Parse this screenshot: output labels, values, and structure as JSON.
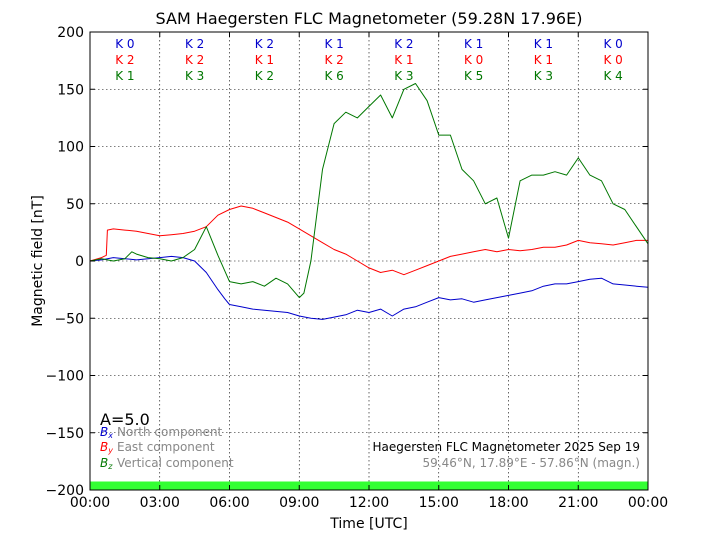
{
  "chart_data": {
    "type": "line",
    "title": "SAM Haegersten FLC Magnetometer (59.28N 17.96E)",
    "xlabel": "Time [UTC]",
    "ylabel": "Magnetic field [nT]",
    "xlim_hours": [
      0,
      24
    ],
    "ylim": [
      -200,
      200
    ],
    "x_tick_labels": [
      "00:00",
      "03:00",
      "06:00",
      "09:00",
      "12:00",
      "15:00",
      "18:00",
      "21:00",
      "00:00"
    ],
    "y_ticks": [
      -200,
      -150,
      -100,
      -50,
      0,
      50,
      100,
      150,
      200
    ],
    "y_tick_labels": [
      "−200",
      "−150",
      "−100",
      "−50",
      "0",
      "50",
      "100",
      "150",
      "200"
    ],
    "grid": true,
    "colors": {
      "north": "#0000cc",
      "east": "#ff0000",
      "vertical": "#007700",
      "quality_bar": "#33ff33"
    },
    "k_indices": {
      "north": [
        "K 0",
        "K 2",
        "K 2",
        "K 1",
        "K 2",
        "K 1",
        "K 1",
        "K 0"
      ],
      "east": [
        "K 2",
        "K 2",
        "K 1",
        "K 2",
        "K 1",
        "K 0",
        "K 1",
        "K 0"
      ],
      "vertical": [
        "K 1",
        "K 3",
        "K 2",
        "K 6",
        "K 3",
        "K 5",
        "K 3",
        "K 4"
      ]
    },
    "a_index": "A=5.0",
    "legend": {
      "position": "bottom-left",
      "entries": [
        {
          "symbol": "B",
          "sub": "x",
          "label": "North component",
          "series": "north"
        },
        {
          "symbol": "B",
          "sub": "y",
          "label": "East component",
          "series": "east"
        },
        {
          "symbol": "B",
          "sub": "z",
          "label": "Vertical component",
          "series": "vertical"
        }
      ]
    },
    "annotation": {
      "line1": "Haegersten FLC Magnetometer 2025 Sep 19",
      "line2": "59.46°N, 17.89°E - 57.86°N (magn.)"
    },
    "series": [
      {
        "name": "North component",
        "key": "north",
        "x": [
          0,
          0.5,
          1,
          1.5,
          2,
          2.5,
          3,
          3.5,
          4,
          4.5,
          5,
          5.5,
          5.8,
          6,
          6.5,
          7,
          7.5,
          8,
          8.5,
          9,
          9.5,
          10,
          10.5,
          11,
          11.5,
          12,
          12.5,
          13,
          13.5,
          14,
          14.5,
          15,
          15.5,
          16,
          16.5,
          17,
          17.5,
          18,
          18.5,
          19,
          19.5,
          20,
          20.5,
          21,
          21.5,
          22,
          22.5,
          23,
          23.5,
          24
        ],
        "y": [
          0,
          1,
          3,
          2,
          1,
          2,
          3,
          4,
          3,
          0,
          -10,
          -25,
          -33,
          -38,
          -40,
          -42,
          -43,
          -44,
          -45,
          -48,
          -50,
          -51,
          -49,
          -47,
          -43,
          -45,
          -42,
          -48,
          -42,
          -40,
          -36,
          -32,
          -34,
          -33,
          -36,
          -34,
          -32,
          -30,
          -28,
          -26,
          -22,
          -20,
          -20,
          -18,
          -16,
          -15,
          -20,
          -21,
          -22,
          -23
        ]
      },
      {
        "name": "East component",
        "key": "east",
        "x": [
          0,
          0.5,
          0.7,
          0.75,
          1,
          1.5,
          2,
          2.5,
          3,
          3.5,
          4,
          4.5,
          5,
          5.5,
          6,
          6.5,
          7,
          7.5,
          8,
          8.5,
          9,
          9.5,
          10,
          10.5,
          11,
          11.5,
          12,
          12.5,
          13,
          13.5,
          14,
          14.5,
          15,
          15.5,
          16,
          16.5,
          17,
          17.5,
          18,
          18.5,
          19,
          19.5,
          20,
          20.5,
          21,
          21.5,
          22,
          22.5,
          23,
          23.5,
          24
        ],
        "y": [
          0,
          3,
          5,
          27,
          28,
          27,
          26,
          24,
          22,
          23,
          24,
          26,
          30,
          40,
          45,
          48,
          46,
          42,
          38,
          34,
          28,
          22,
          16,
          10,
          6,
          0,
          -6,
          -10,
          -8,
          -12,
          -8,
          -4,
          0,
          4,
          6,
          8,
          10,
          8,
          10,
          9,
          10,
          12,
          12,
          14,
          18,
          16,
          15,
          14,
          16,
          18,
          18
        ]
      },
      {
        "name": "Vertical component",
        "key": "vertical",
        "x": [
          0,
          0.5,
          1,
          1.5,
          1.8,
          2,
          2.5,
          3,
          3.5,
          4,
          4.5,
          5,
          5.5,
          6,
          6.5,
          7,
          7.5,
          8,
          8.5,
          9,
          9.2,
          9.5,
          10,
          10.5,
          11,
          11.5,
          12,
          12.5,
          13,
          13.5,
          14,
          14.5,
          15,
          15.5,
          16,
          16.5,
          17,
          17.5,
          18,
          18.5,
          19,
          19.5,
          20,
          20.5,
          21,
          21.5,
          22,
          22.5,
          23,
          23.5,
          24
        ],
        "y": [
          0,
          2,
          0,
          2,
          8,
          6,
          3,
          2,
          0,
          3,
          10,
          30,
          5,
          -18,
          -20,
          -18,
          -22,
          -15,
          -20,
          -32,
          -28,
          0,
          80,
          120,
          130,
          125,
          135,
          145,
          125,
          150,
          155,
          140,
          110,
          110,
          80,
          70,
          50,
          55,
          20,
          70,
          75,
          75,
          78,
          75,
          90,
          75,
          70,
          50,
          45,
          30,
          15
        ]
      }
    ]
  }
}
